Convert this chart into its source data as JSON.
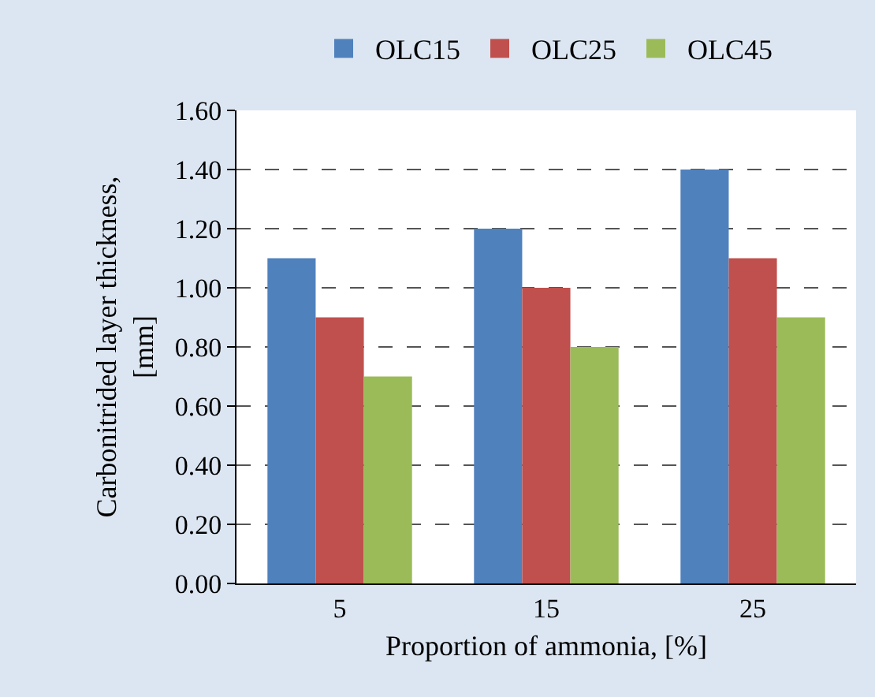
{
  "chart_data": {
    "type": "bar",
    "xlabel": "Proportion of ammonia, [%]",
    "ylabel": "Carbonitrided layer thickness, [mm]",
    "categories": [
      "5",
      "15",
      "25"
    ],
    "series": [
      {
        "name": "OLC15",
        "color": "#4f81bd",
        "values": [
          1.1,
          1.2,
          1.4
        ]
      },
      {
        "name": "OLC25",
        "color": "#c0504d",
        "values": [
          0.9,
          1.0,
          1.1
        ]
      },
      {
        "name": "OLC45",
        "color": "#9bbb59",
        "values": [
          0.7,
          0.8,
          0.9
        ]
      }
    ],
    "ylim": [
      0,
      1.6
    ],
    "yticks": [
      {
        "value": 0,
        "label": "0.00"
      },
      {
        "value": 0.2,
        "label": "0.20"
      },
      {
        "value": 0.4,
        "label": "0.40"
      },
      {
        "value": 0.6,
        "label": "0.60"
      },
      {
        "value": 0.8,
        "label": "0.80"
      },
      {
        "value": 1.0,
        "label": "1.00"
      },
      {
        "value": 1.2,
        "label": "1.20"
      },
      {
        "value": 1.4,
        "label": "1.40"
      },
      {
        "value": 1.6,
        "label": "1.60"
      }
    ],
    "grid": "y",
    "legend": "top"
  }
}
